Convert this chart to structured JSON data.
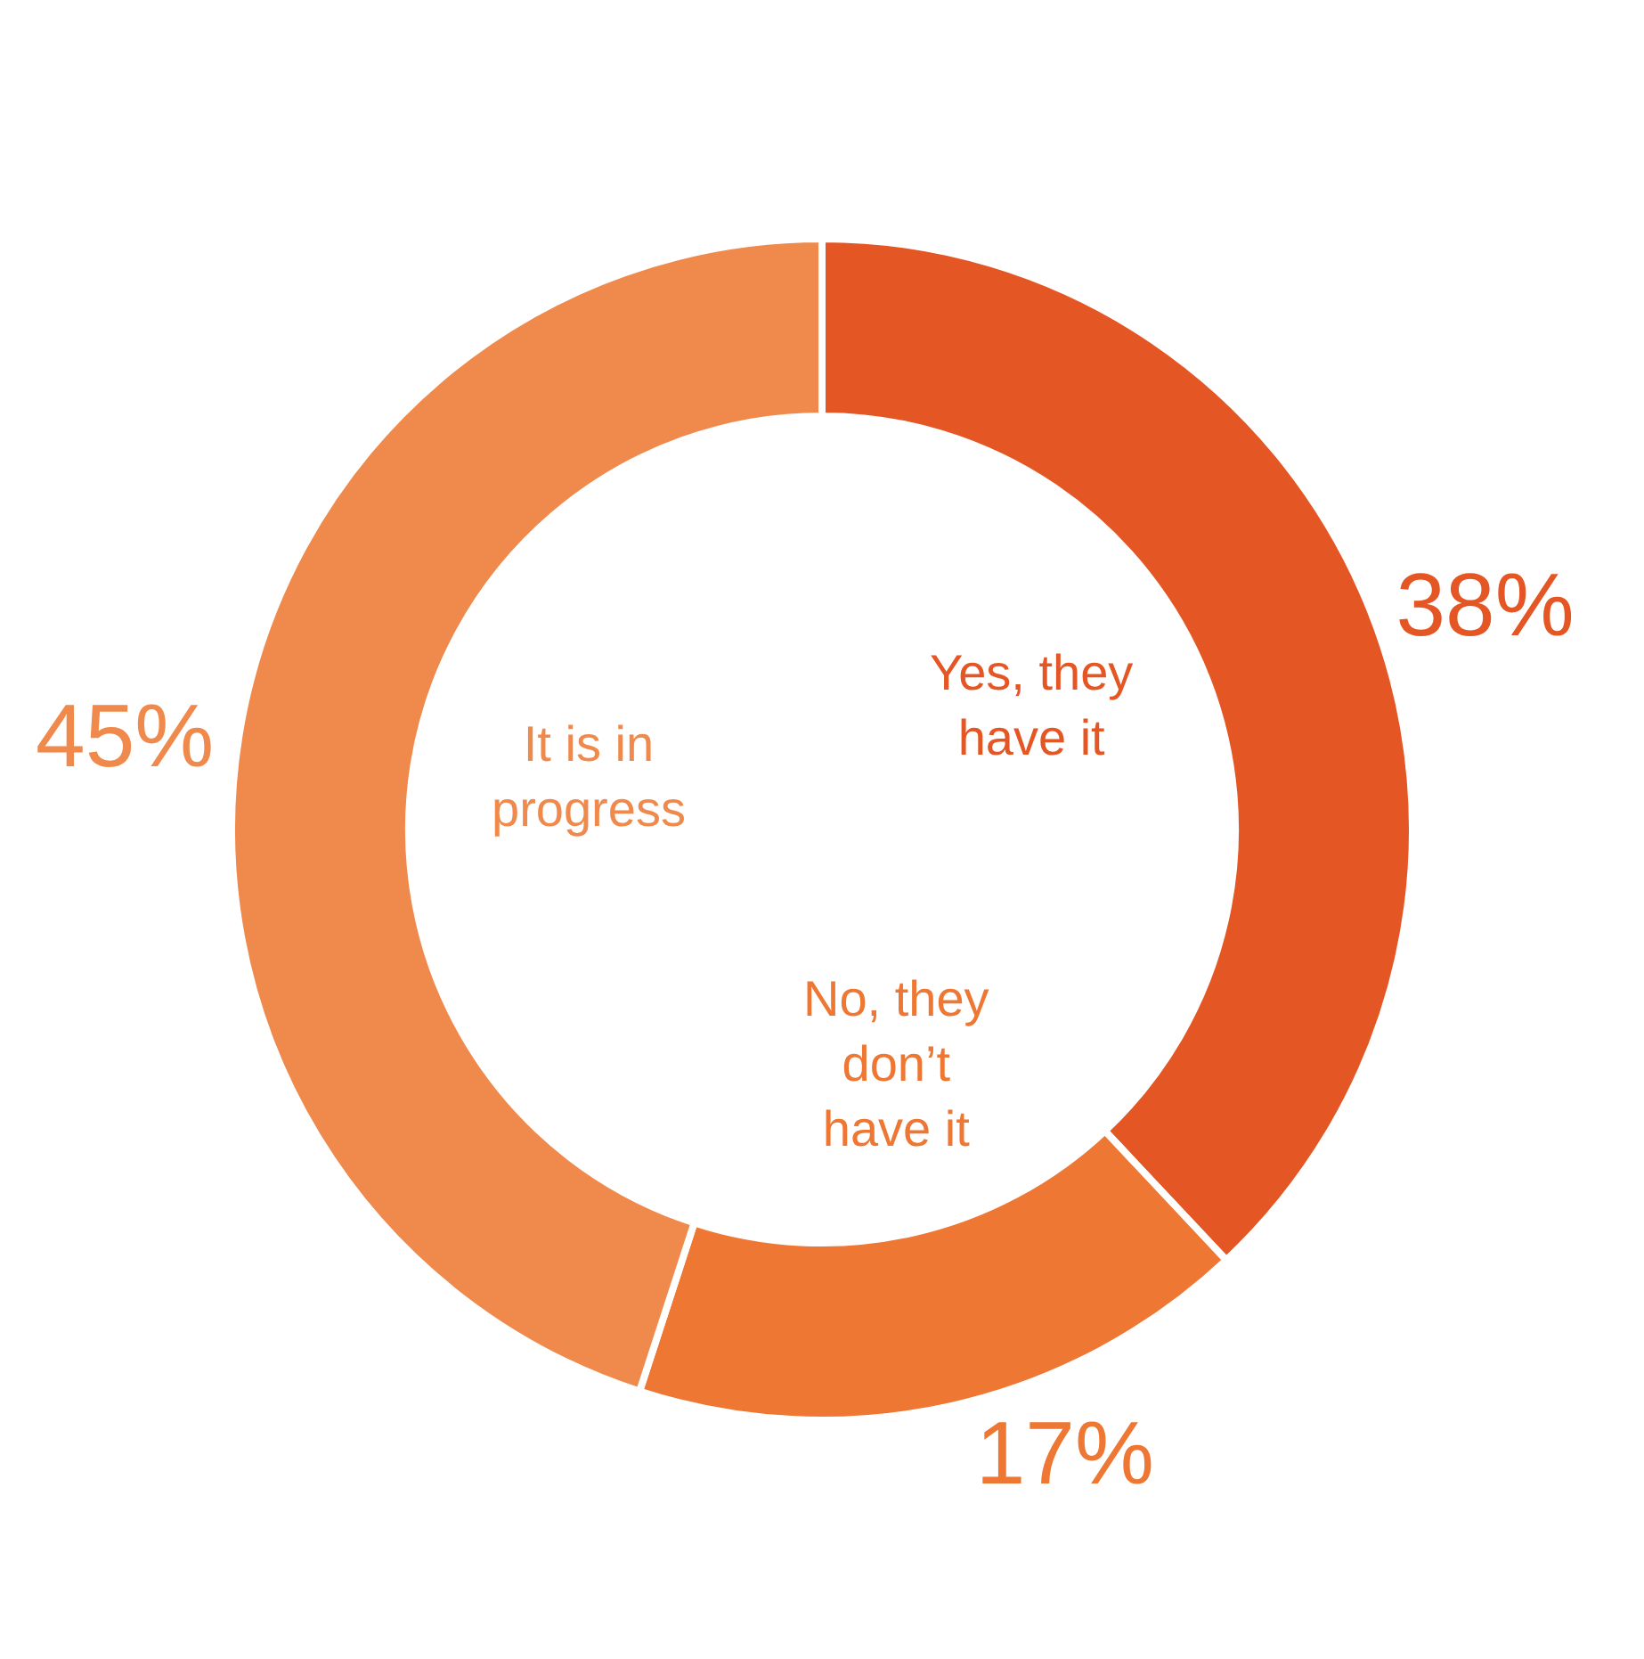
{
  "chart_data": {
    "type": "donut",
    "categories": [
      "Yes, they have it",
      "No, they don’t have it",
      "It is in progress"
    ],
    "values": [
      38,
      17,
      45
    ],
    "colors": [
      "#e55625",
      "#ed7733",
      "#ef8a4c"
    ],
    "value_labels": [
      "38%",
      "17%",
      "45%"
    ],
    "legend": false
  }
}
